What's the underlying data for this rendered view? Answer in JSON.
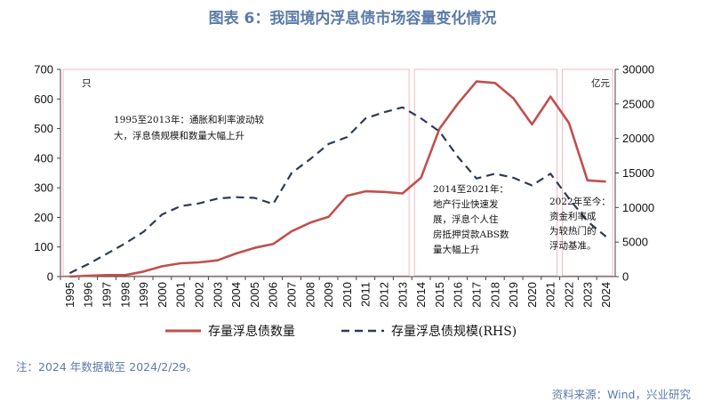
{
  "title": "图表 6：我国境内浮息债市场容量变化情况",
  "note": "注：2024 年数据截至 2024/2/29。",
  "source": "资料来源：Wind，兴业研究",
  "chart_data": {
    "type": "line",
    "categories": [
      "1995",
      "1996",
      "1997",
      "1998",
      "1999",
      "2000",
      "2001",
      "2002",
      "2003",
      "2004",
      "2005",
      "2006",
      "2007",
      "2008",
      "2009",
      "2010",
      "2011",
      "2012",
      "2013",
      "2014",
      "2015",
      "2016",
      "2017",
      "2018",
      "2019",
      "2020",
      "2021",
      "2022",
      "2023",
      "2024"
    ],
    "series": [
      {
        "name": "存量浮息债数量",
        "axis": "left",
        "color": "#C0504D",
        "style": "solid",
        "values": [
          0,
          3,
          5,
          5,
          17,
          35,
          45,
          48,
          55,
          78,
          97,
          110,
          153,
          182,
          202,
          273,
          288,
          286,
          281,
          334,
          500,
          585,
          659,
          654,
          602,
          514,
          608,
          519,
          325,
          321
        ]
      },
      {
        "name": "存量浮息债规模(RHS)",
        "axis": "right",
        "color": "#2E3B55",
        "style": "dashed",
        "values": [
          500,
          1800,
          3300,
          4800,
          6500,
          9000,
          10200,
          10600,
          11300,
          11500,
          11400,
          10500,
          15000,
          17000,
          19200,
          20200,
          22900,
          23800,
          24500,
          22900,
          21000,
          17300,
          14200,
          14900,
          14300,
          13200,
          14900,
          11300,
          8000,
          5800
        ]
      }
    ],
    "left_axis": {
      "label": "只",
      "min": 0,
      "max": 700,
      "ticks": [
        0,
        100,
        200,
        300,
        400,
        500,
        600,
        700
      ]
    },
    "right_axis": {
      "label": "亿元",
      "min": 0,
      "max": 30000,
      "ticks": [
        0,
        5000,
        10000,
        15000,
        20000,
        25000,
        30000
      ]
    },
    "periods": [
      {
        "from": "1995",
        "to": "2013",
        "lines": [
          "1995至2013年：通胀和利率波动较",
          "大，浮息债规模和数量大幅上升"
        ]
      },
      {
        "from": "2014",
        "to": "2021",
        "lines": [
          "2014至2021年：",
          "地产行业快速发",
          "展，浮息个人住",
          "房抵押贷款ABS数",
          "量大幅上升"
        ]
      },
      {
        "from": "2022",
        "to": "2024",
        "lines": [
          "2022年至今：",
          "资金利率成",
          "为较热门的",
          "浮动基准。"
        ]
      }
    ],
    "legend_position": "bottom",
    "grid": false
  }
}
